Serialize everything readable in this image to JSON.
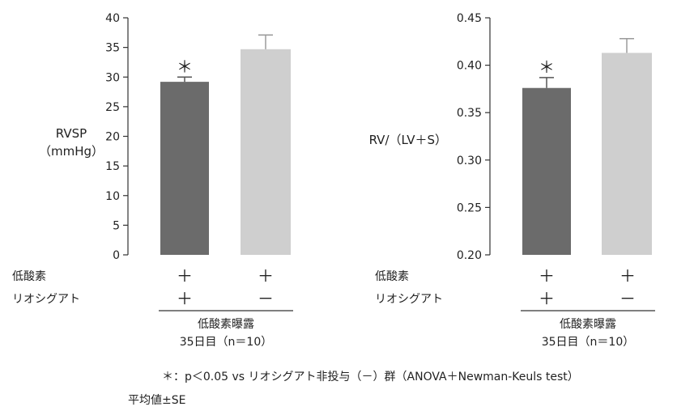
{
  "chart_data": [
    {
      "type": "bar",
      "ylabel": [
        "RVSP",
        "（mmHg）"
      ],
      "ylim": [
        0,
        40
      ],
      "yticks": [
        "0",
        "5",
        "10",
        "15",
        "20",
        "25",
        "30",
        "35",
        "40"
      ],
      "ytick_values": [
        0,
        5,
        10,
        15,
        20,
        25,
        30,
        35,
        40
      ],
      "values": [
        29.2,
        34.7
      ],
      "errors": [
        0.8,
        2.4
      ],
      "annotations": [
        "＊",
        ""
      ],
      "colors": [
        "#6b6b6b",
        "#cfcfcf"
      ],
      "grid": false
    },
    {
      "type": "bar",
      "ylabel": [
        "RV/（LV＋S）"
      ],
      "ylim": [
        0.2,
        0.45
      ],
      "yticks": [
        "0.20",
        "0.25",
        "0.30",
        "0.35",
        "0.40",
        "0.45"
      ],
      "ytick_values": [
        0.2,
        0.25,
        0.3,
        0.35,
        0.4,
        0.45
      ],
      "values": [
        0.376,
        0.413
      ],
      "errors": [
        0.011,
        0.015
      ],
      "annotations": [
        "＊",
        ""
      ],
      "colors": [
        "#6b6b6b",
        "#cfcfcf"
      ],
      "grid": false
    }
  ],
  "conditions": {
    "row_labels": [
      "低酸素",
      "リオシグアト"
    ],
    "bar1": [
      "＋",
      "＋"
    ],
    "bar2": [
      "＋",
      "－"
    ],
    "group_line1": "低酸素曝露",
    "group_line2": "35日目（n＝10）"
  },
  "footnote": "＊：p＜0.05 vs リオシグアト非投与（－）群（ANOVA＋Newman-Keuls test）",
  "summary_note": "平均値±SE"
}
